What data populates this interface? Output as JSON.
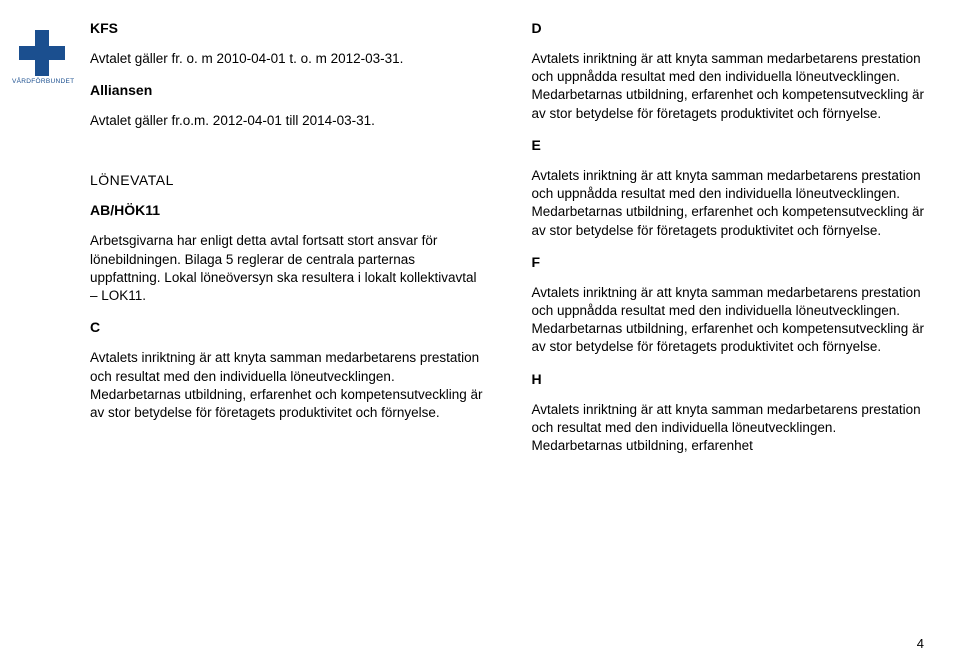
{
  "logo": {
    "text": "VÅRDFÖRBUNDET",
    "color": "#1b4f8f"
  },
  "leftCol": {
    "kfs": "KFS",
    "kfsText": "Avtalet gäller fr. o. m 2010-04-01 t. o. m 2012-03-31.",
    "alliansen": "Alliansen",
    "alliansenText": "Avtalet gäller fr.o.m. 2012-04-01 till 2014-03-31.",
    "lonevatal": "LÖNEVATAL",
    "abhok": "AB/HÖK11",
    "abhokText": "Arbetsgivarna har enligt detta avtal fortsatt stort ansvar för lönebildningen. Bilaga 5 reglerar de centrala parternas uppfattning. Lokal löneöversyn ska resultera i lokalt kollektivavtal – LOK11.",
    "letC": "C",
    "cText": "Avtalets inriktning är att knyta samman medarbetarens prestation och resultat med den individuella löneutvecklingen. Medarbetarnas utbildning, erfarenhet och kompetensutveckling är av stor betydelse för företagets produktivitet och förnyelse."
  },
  "rightCol": {
    "letD": "D",
    "dText": "Avtalets inriktning är att knyta samman medarbetarens prestation och uppnådda resultat med den individuella löneutvecklingen. Medarbetarnas utbildning, erfarenhet och kompetensutveckling är av stor betydelse för företagets produktivitet och förnyelse.",
    "letE": "E",
    "eText": "Avtalets inriktning är att knyta samman medarbetarens prestation och uppnådda resultat med den individuella löneutvecklingen. Medarbetarnas utbildning, erfarenhet och kompetensutveckling är av stor betydelse för företagets produktivitet och förnyelse.",
    "letF": "F",
    "fText": "Avtalets inriktning är att knyta samman medarbetarens prestation och uppnådda resultat med den individuella löneutvecklingen. Medarbetarnas utbildning, erfarenhet och kompetensutveckling är av stor betydelse för företagets produktivitet och förnyelse.",
    "letH": "H",
    "hText": "Avtalets inriktning är att knyta samman medarbetarens prestation och resultat med den individuella löneutvecklingen. Medarbetarnas utbildning, erfarenhet"
  },
  "pageNumber": "4"
}
